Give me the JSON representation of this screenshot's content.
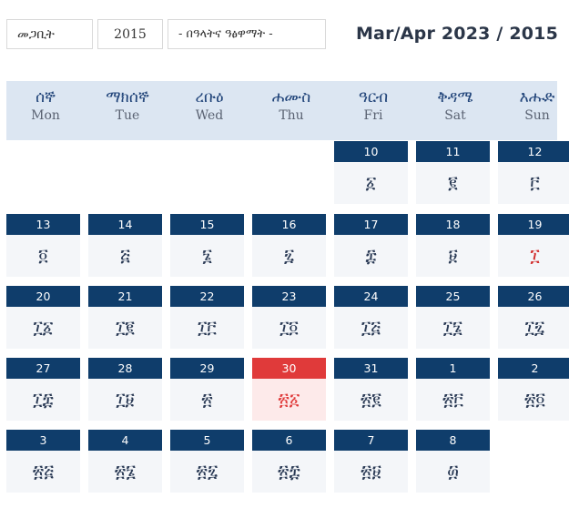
{
  "controls": {
    "month_select": "መጋቢት",
    "year_select": "2015",
    "holiday_select": "- በዓላትና ዓፅዋማት -"
  },
  "title": "Mar/Apr 2023  /  2015",
  "weekdays": [
    {
      "am": "ሰኞ",
      "en": "Mon"
    },
    {
      "am": "ማክሰኞ",
      "en": "Tue"
    },
    {
      "am": "ረቡዕ",
      "en": "Wed"
    },
    {
      "am": "ሐሙስ",
      "en": "Thu"
    },
    {
      "am": "ዓርብ",
      "en": "Fri"
    },
    {
      "am": "ቅዳሜ",
      "en": "Sat"
    },
    {
      "am": "እሑድ",
      "en": "Sun"
    }
  ],
  "weeks": [
    [
      null,
      null,
      null,
      null,
      {
        "g": "10",
        "e": "፩"
      },
      {
        "g": "11",
        "e": "፪"
      },
      {
        "g": "12",
        "e": "፫"
      }
    ],
    [
      {
        "g": "13",
        "e": "፬"
      },
      {
        "g": "14",
        "e": "፭"
      },
      {
        "g": "15",
        "e": "፮"
      },
      {
        "g": "16",
        "e": "፯"
      },
      {
        "g": "17",
        "e": "፰"
      },
      {
        "g": "18",
        "e": "፱"
      },
      {
        "g": "19",
        "e": "፲",
        "holiday": true
      }
    ],
    [
      {
        "g": "20",
        "e": "፲፩"
      },
      {
        "g": "21",
        "e": "፲፪"
      },
      {
        "g": "22",
        "e": "፲፫"
      },
      {
        "g": "23",
        "e": "፲፬"
      },
      {
        "g": "24",
        "e": "፲፭"
      },
      {
        "g": "25",
        "e": "፲፮"
      },
      {
        "g": "26",
        "e": "፲፯"
      }
    ],
    [
      {
        "g": "27",
        "e": "፲፰"
      },
      {
        "g": "28",
        "e": "፲፱"
      },
      {
        "g": "29",
        "e": "፳"
      },
      {
        "g": "30",
        "e": "፳፩",
        "today": true
      },
      {
        "g": "31",
        "e": "፳፪"
      },
      {
        "g": "1",
        "e": "፳፫"
      },
      {
        "g": "2",
        "e": "፳፬"
      }
    ],
    [
      {
        "g": "3",
        "e": "፳፭"
      },
      {
        "g": "4",
        "e": "፳፮"
      },
      {
        "g": "5",
        "e": "፳፯"
      },
      {
        "g": "6",
        "e": "፳፰"
      },
      {
        "g": "7",
        "e": "፳፱"
      },
      {
        "g": "8",
        "e": "፴"
      },
      null
    ]
  ]
}
